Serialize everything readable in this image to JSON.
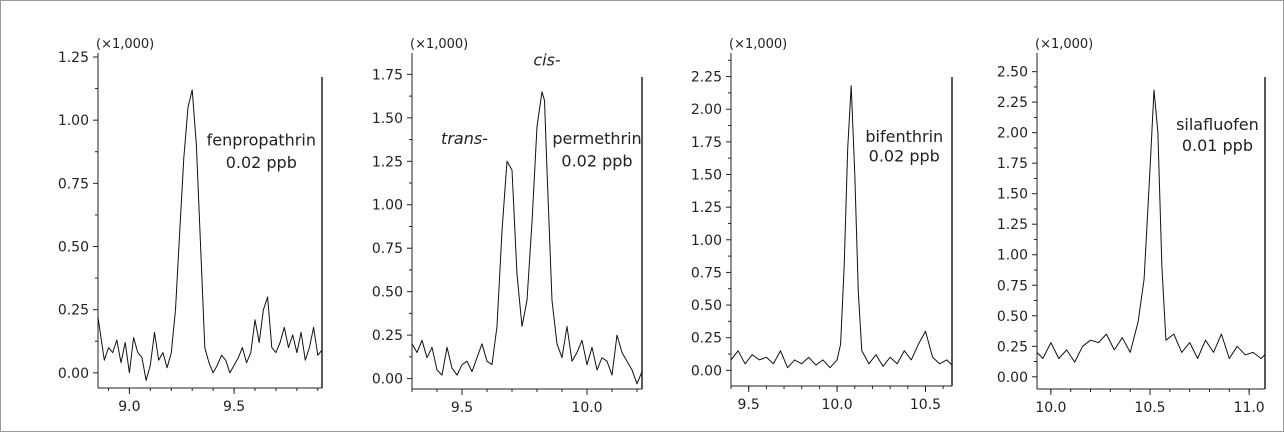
{
  "chart_data": [
    {
      "type": "line",
      "multiplier_label": "(×1,000)",
      "xlim": [
        8.85,
        9.92
      ],
      "ylim": [
        -0.06,
        1.25
      ],
      "xticks": [
        9.0,
        9.5
      ],
      "xtick_labels": [
        "9.0",
        "9.5"
      ],
      "yticks": [
        0.0,
        0.25,
        0.5,
        0.75,
        1.0,
        1.25
      ],
      "ytick_labels": [
        "0.00",
        "0.25",
        "0.50",
        "0.75",
        "1.00",
        "1.25"
      ],
      "annotations": [
        {
          "text": "fenpropathrin",
          "x": 9.63,
          "y": 0.9,
          "style": "normal"
        },
        {
          "text": "0.02 ppb",
          "x": 9.63,
          "y": 0.81,
          "style": "normal"
        }
      ],
      "series": [
        {
          "x": [
            8.85,
            8.88,
            8.9,
            8.92,
            8.94,
            8.96,
            8.98,
            9.0,
            9.02,
            9.04,
            9.06,
            9.08,
            9.1,
            9.12,
            9.14,
            9.16,
            9.18,
            9.2,
            9.22,
            9.24,
            9.26,
            9.28,
            9.3,
            9.32,
            9.34,
            9.35,
            9.36,
            9.38,
            9.4,
            9.42,
            9.44,
            9.46,
            9.48,
            9.5,
            9.52,
            9.54,
            9.56,
            9.58,
            9.6,
            9.62,
            9.64,
            9.66,
            9.68,
            9.7,
            9.72,
            9.74,
            9.76,
            9.78,
            9.8,
            9.82,
            9.84,
            9.86,
            9.88,
            9.9,
            9.92
          ],
          "y": [
            0.22,
            0.05,
            0.1,
            0.08,
            0.13,
            0.04,
            0.12,
            0.0,
            0.14,
            0.08,
            0.06,
            -0.03,
            0.03,
            0.16,
            0.05,
            0.08,
            0.02,
            0.08,
            0.25,
            0.55,
            0.85,
            1.05,
            1.12,
            0.9,
            0.5,
            0.3,
            0.1,
            0.04,
            0.0,
            0.03,
            0.07,
            0.05,
            0.0,
            0.03,
            0.06,
            0.1,
            0.04,
            0.08,
            0.21,
            0.12,
            0.25,
            0.3,
            0.1,
            0.08,
            0.12,
            0.18,
            0.1,
            0.15,
            0.08,
            0.16,
            0.05,
            0.1,
            0.18,
            0.07,
            0.09
          ]
        }
      ]
    },
    {
      "type": "line",
      "multiplier_label": "(×1,000)",
      "xlim": [
        9.3,
        10.22
      ],
      "ylim": [
        -0.06,
        1.85
      ],
      "xticks": [
        9.5,
        10.0
      ],
      "xtick_labels": [
        "9.5",
        "10.0"
      ],
      "yticks": [
        0.0,
        0.25,
        0.5,
        0.75,
        1.0,
        1.25,
        1.5,
        1.75
      ],
      "ytick_labels": [
        "0.00",
        "0.25",
        "0.50",
        "0.75",
        "1.00",
        "1.25",
        "1.50",
        "1.75"
      ],
      "annotations": [
        {
          "text": "cis-",
          "x": 9.84,
          "y": 1.8,
          "style": "italic"
        },
        {
          "text": "trans-",
          "x": 9.51,
          "y": 1.35,
          "style": "italic"
        },
        {
          "text": "permethrin",
          "x": 10.04,
          "y": 1.35,
          "style": "normal"
        },
        {
          "text": "0.02 ppb",
          "x": 10.04,
          "y": 1.22,
          "style": "normal"
        }
      ],
      "series": [
        {
          "x": [
            9.3,
            9.32,
            9.34,
            9.36,
            9.38,
            9.4,
            9.42,
            9.44,
            9.46,
            9.48,
            9.5,
            9.52,
            9.54,
            9.56,
            9.58,
            9.6,
            9.62,
            9.64,
            9.66,
            9.68,
            9.7,
            9.72,
            9.74,
            9.76,
            9.78,
            9.8,
            9.82,
            9.83,
            9.84,
            9.86,
            9.88,
            9.9,
            9.92,
            9.94,
            9.96,
            9.98,
            10.0,
            10.02,
            10.04,
            10.06,
            10.08,
            10.1,
            10.12,
            10.14,
            10.16,
            10.18,
            10.2,
            10.22
          ],
          "y": [
            0.2,
            0.15,
            0.22,
            0.12,
            0.18,
            0.05,
            0.02,
            0.18,
            0.06,
            0.02,
            0.08,
            0.1,
            0.04,
            0.12,
            0.2,
            0.1,
            0.08,
            0.3,
            0.85,
            1.25,
            1.2,
            0.6,
            0.3,
            0.45,
            0.9,
            1.45,
            1.65,
            1.6,
            1.2,
            0.45,
            0.2,
            0.12,
            0.3,
            0.1,
            0.15,
            0.22,
            0.08,
            0.18,
            0.05,
            0.12,
            0.1,
            0.02,
            0.25,
            0.15,
            0.1,
            0.05,
            -0.03,
            0.04
          ]
        }
      ]
    },
    {
      "type": "line",
      "multiplier_label": "(×1,000)",
      "xlim": [
        9.4,
        10.65
      ],
      "ylim": [
        -0.12,
        2.4
      ],
      "xticks": [
        9.5,
        10.0,
        10.5
      ],
      "xtick_labels": [
        "9.5",
        "10.0",
        "10.5"
      ],
      "yticks": [
        0.0,
        0.25,
        0.5,
        0.75,
        1.0,
        1.25,
        1.5,
        1.75,
        2.0,
        2.25
      ],
      "ytick_labels": [
        "0.00",
        "0.25",
        "0.50",
        "0.75",
        "1.00",
        "1.25",
        "1.50",
        "1.75",
        "2.00",
        "2.25"
      ],
      "annotations": [
        {
          "text": "bifenthrin",
          "x": 10.38,
          "y": 1.75,
          "style": "normal"
        },
        {
          "text": "0.02 ppb",
          "x": 10.38,
          "y": 1.6,
          "style": "normal"
        }
      ],
      "series": [
        {
          "x": [
            9.4,
            9.44,
            9.48,
            9.52,
            9.56,
            9.6,
            9.64,
            9.68,
            9.72,
            9.76,
            9.8,
            9.84,
            9.88,
            9.92,
            9.96,
            10.0,
            10.02,
            10.04,
            10.06,
            10.08,
            10.1,
            10.12,
            10.14,
            10.18,
            10.22,
            10.26,
            10.3,
            10.34,
            10.38,
            10.42,
            10.46,
            10.5,
            10.54,
            10.58,
            10.62,
            10.65
          ],
          "y": [
            0.08,
            0.15,
            0.05,
            0.12,
            0.08,
            0.1,
            0.05,
            0.15,
            0.02,
            0.08,
            0.05,
            0.1,
            0.04,
            0.08,
            0.02,
            0.08,
            0.2,
            0.8,
            1.7,
            2.18,
            1.5,
            0.6,
            0.15,
            0.05,
            0.12,
            0.03,
            0.1,
            0.05,
            0.15,
            0.08,
            0.2,
            0.3,
            0.1,
            0.05,
            0.08,
            0.04
          ]
        }
      ]
    },
    {
      "type": "line",
      "multiplier_label": "(×1,000)",
      "xlim": [
        9.93,
        11.08
      ],
      "ylim": [
        -0.1,
        2.62
      ],
      "xticks": [
        10.0,
        10.5,
        11.0
      ],
      "xtick_labels": [
        "10.0",
        "10.5",
        "11.0"
      ],
      "yticks": [
        0.0,
        0.25,
        0.5,
        0.75,
        1.0,
        1.25,
        1.5,
        1.75,
        2.0,
        2.25,
        2.5
      ],
      "ytick_labels": [
        "0.00",
        "0.25",
        "0.50",
        "0.75",
        "1.00",
        "1.25",
        "1.50",
        "1.75",
        "2.00",
        "2.25",
        "2.50"
      ],
      "annotations": [
        {
          "text": "silafluofen",
          "x": 10.84,
          "y": 2.02,
          "style": "normal"
        },
        {
          "text": "0.01 ppb",
          "x": 10.84,
          "y": 1.85,
          "style": "normal"
        }
      ],
      "series": [
        {
          "x": [
            9.93,
            9.96,
            10.0,
            10.04,
            10.08,
            10.12,
            10.16,
            10.2,
            10.24,
            10.28,
            10.32,
            10.36,
            10.4,
            10.44,
            10.47,
            10.5,
            10.52,
            10.54,
            10.56,
            10.58,
            10.62,
            10.66,
            10.7,
            10.74,
            10.78,
            10.82,
            10.86,
            10.9,
            10.94,
            10.98,
            11.02,
            11.06,
            11.08
          ],
          "y": [
            0.2,
            0.15,
            0.28,
            0.15,
            0.22,
            0.12,
            0.25,
            0.3,
            0.28,
            0.35,
            0.22,
            0.32,
            0.2,
            0.45,
            0.8,
            1.7,
            2.35,
            2.0,
            0.9,
            0.3,
            0.35,
            0.2,
            0.28,
            0.15,
            0.3,
            0.2,
            0.35,
            0.15,
            0.25,
            0.18,
            0.2,
            0.15,
            0.18
          ]
        }
      ]
    }
  ]
}
